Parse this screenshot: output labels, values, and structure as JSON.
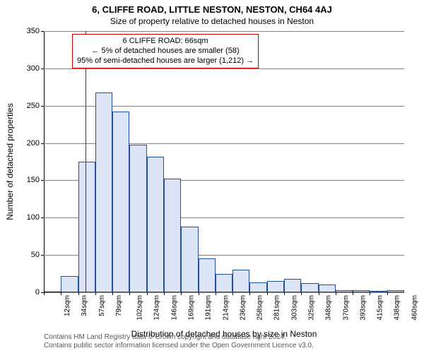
{
  "title_main": "6, CLIFFE ROAD, LITTLE NESTON, NESTON, CH64 4AJ",
  "title_sub": "Size of property relative to detached houses in Neston",
  "chart": {
    "type": "histogram",
    "ymax": 350,
    "ytick_step": 50,
    "yticks": [
      0,
      50,
      100,
      150,
      200,
      250,
      300,
      350
    ],
    "ylabel": "Number of detached properties",
    "xlabel": "Distribution of detached houses by size in Neston",
    "xtick_labels": [
      "12sqm",
      "34sqm",
      "57sqm",
      "79sqm",
      "102sqm",
      "124sqm",
      "146sqm",
      "169sqm",
      "191sqm",
      "214sqm",
      "236sqm",
      "258sqm",
      "281sqm",
      "303sqm",
      "325sqm",
      "348sqm",
      "370sqm",
      "393sqm",
      "415sqm",
      "438sqm",
      "460sqm"
    ],
    "bar_values": [
      0,
      22,
      175,
      268,
      242,
      198,
      182,
      152,
      88,
      45,
      25,
      30,
      13,
      15,
      18,
      12,
      10,
      3,
      3,
      2,
      3
    ],
    "bar_fill": "#dbe5f5",
    "bar_border": "#1f4f9e",
    "grid_color": "#7f7f7f",
    "background": "#ffffff",
    "bar_width_ratio": 1.0,
    "marker": {
      "color": "#cc0000",
      "value_sqm": 66,
      "x_range_min": 12,
      "x_range_max": 460
    }
  },
  "annotation": {
    "line1": "6 CLIFFE ROAD: 66sqm",
    "line2": "← 5% of detached houses are smaller (58)",
    "line3": "95% of semi-detached houses are larger (1,212) →",
    "border_color": "#cc0000"
  },
  "footer": {
    "line1": "Contains HM Land Registry data © Crown copyright and database right 2024.",
    "line2": "Contains public sector information licensed under the Open Government Licence v3.0."
  }
}
